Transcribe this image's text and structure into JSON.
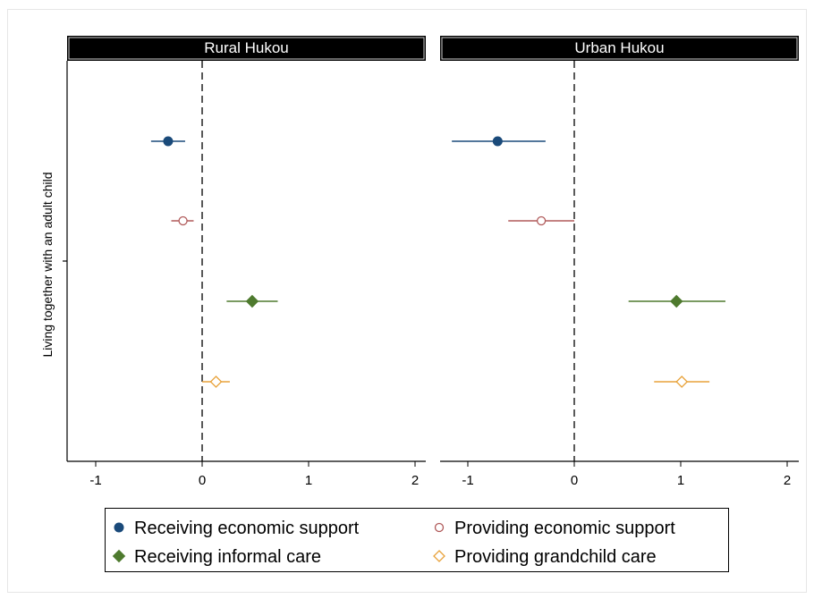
{
  "chart_data": {
    "type": "scatter",
    "subtype": "coefficient-plot-with-confidence-intervals",
    "panels": [
      "Rural Hukou",
      "Urban Hukou"
    ],
    "ylabel": "Living together with an adult child",
    "xlim": [
      -1.25,
      2.1
    ],
    "xticks": [
      -1,
      0,
      1,
      2
    ],
    "reference_line": 0,
    "grid": false,
    "legend_position": "bottom",
    "series": [
      {
        "name": "Receiving economic support",
        "marker": "filled-circle",
        "color": "#1a4a7a",
        "values": [
          {
            "panel": "Rural Hukou",
            "estimate": -0.32,
            "ci": [
              -0.48,
              -0.16
            ]
          },
          {
            "panel": "Urban Hukou",
            "estimate": -0.72,
            "ci": [
              -1.15,
              -0.27
            ]
          }
        ]
      },
      {
        "name": "Providing economic support",
        "marker": "hollow-circle",
        "color": "#b05a5a",
        "values": [
          {
            "panel": "Rural Hukou",
            "estimate": -0.18,
            "ci": [
              -0.29,
              -0.08
            ]
          },
          {
            "panel": "Urban Hukou",
            "estimate": -0.31,
            "ci": [
              -0.62,
              0.0
            ]
          }
        ]
      },
      {
        "name": "Receiving informal care",
        "marker": "filled-diamond",
        "color": "#4e7a2e",
        "values": [
          {
            "panel": "Rural Hukou",
            "estimate": 0.47,
            "ci": [
              0.23,
              0.71
            ]
          },
          {
            "panel": "Urban Hukou",
            "estimate": 0.96,
            "ci": [
              0.51,
              1.42
            ]
          }
        ]
      },
      {
        "name": "Providing grandchild care",
        "marker": "hollow-diamond",
        "color": "#e8a23a",
        "values": [
          {
            "panel": "Rural Hukou",
            "estimate": 0.13,
            "ci": [
              0.0,
              0.26
            ]
          },
          {
            "panel": "Urban Hukou",
            "estimate": 1.01,
            "ci": [
              0.75,
              1.27
            ]
          }
        ]
      }
    ]
  }
}
